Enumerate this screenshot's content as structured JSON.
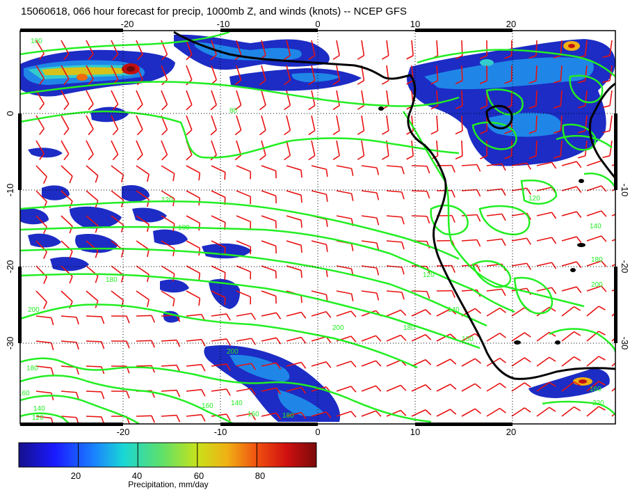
{
  "title": "15060618, 066 hour forecast for precip, 1000mb Z, and winds (knots) -- NCEP GFS",
  "map": {
    "lon_ticks": [
      "-20",
      "-10",
      "0",
      "10",
      "20"
    ],
    "lat_ticks": [
      "0",
      "-10",
      "-20",
      "-30"
    ],
    "contour_labels": [
      "100",
      "80",
      "120",
      "100",
      "180",
      "200",
      "160",
      "140",
      "120",
      "140",
      "160",
      "200",
      "180",
      "160",
      "120",
      "140",
      "160",
      "180",
      "120",
      "220",
      "200",
      "180",
      "180",
      "200",
      "160",
      "140"
    ],
    "colors": {
      "contour": "#22ee22",
      "barb": "#e81010",
      "coast": "#000000"
    }
  },
  "colorbar": {
    "ticks": [
      "20",
      "40",
      "60",
      "80"
    ],
    "label": "Precipitation, mm/day",
    "min": 0,
    "max": 100
  }
}
